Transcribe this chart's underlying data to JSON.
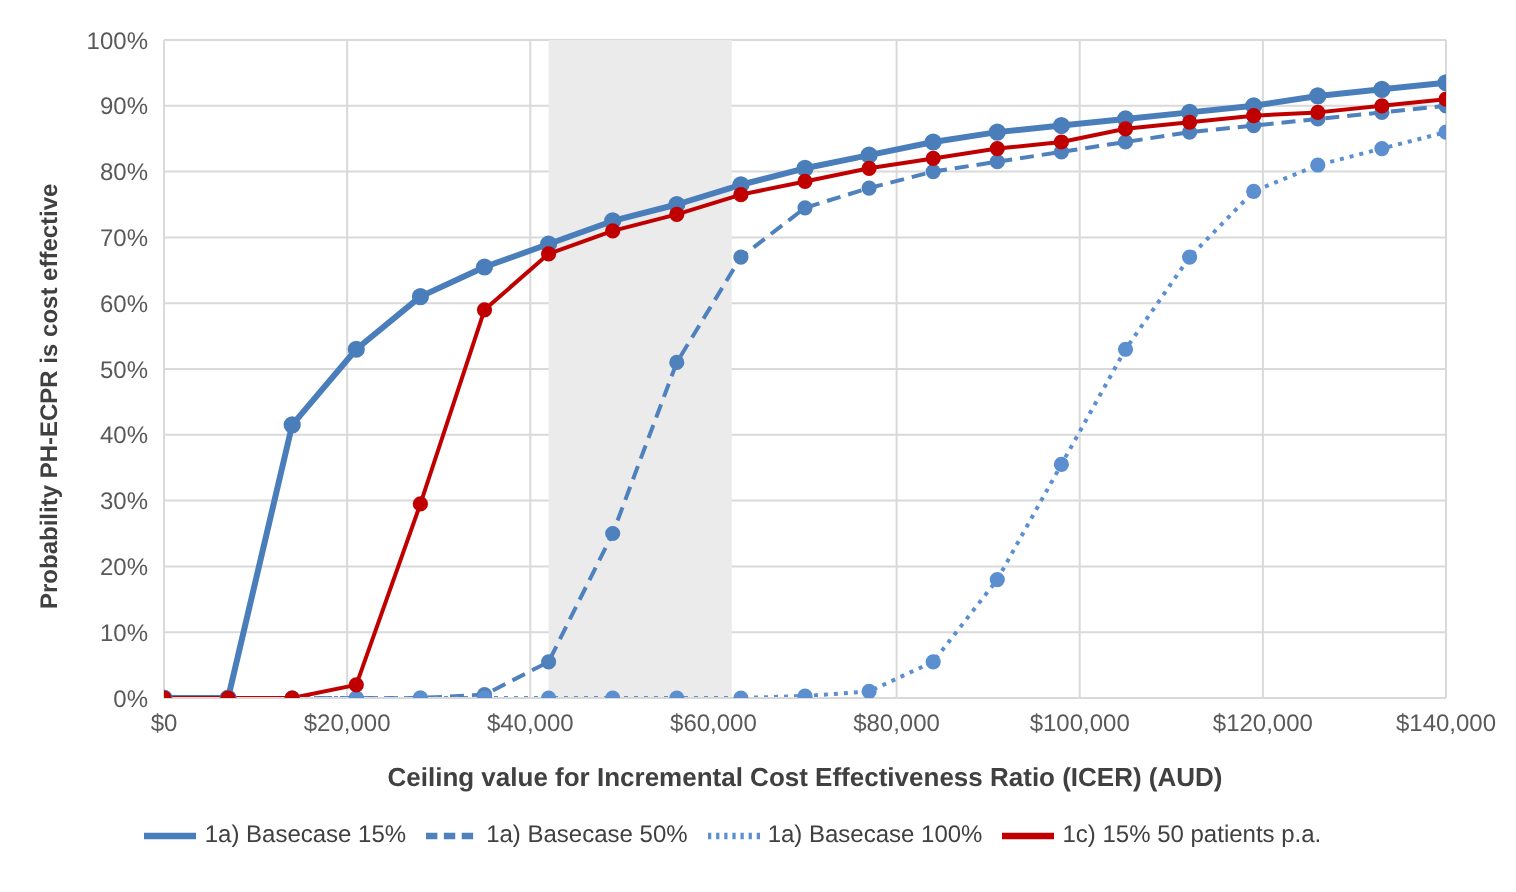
{
  "chart_data": {
    "type": "line",
    "xlabel": "Ceiling value for Incremental Cost Effectiveness Ratio (ICER) (AUD)",
    "ylabel": "Probability PH-ECPR is cost effective",
    "x": [
      0,
      7000,
      14000,
      21000,
      28000,
      35000,
      42000,
      49000,
      56000,
      63000,
      70000,
      77000,
      84000,
      91000,
      98000,
      105000,
      112000,
      119000,
      126000,
      133000,
      140000
    ],
    "series": [
      {
        "name": "1a) Basecase 15%",
        "color": "#4a7ebb",
        "line_style": "solid",
        "values": [
          0,
          0,
          41.5,
          53,
          61,
          65.5,
          69,
          72.5,
          75,
          78,
          80.5,
          82.5,
          84.5,
          86,
          87,
          88,
          89,
          90,
          91.5,
          92.5,
          93.5
        ]
      },
      {
        "name": "1a) Basecase 50%",
        "color": "#4f81bd",
        "line_style": "dashed",
        "values": [
          0,
          0,
          0,
          0,
          0,
          0.5,
          5.5,
          25,
          51,
          67,
          74.5,
          77.5,
          80,
          81.5,
          83,
          84.5,
          86,
          87,
          88,
          89,
          90
        ]
      },
      {
        "name": "1a) Basecase 100%",
        "color": "#5b8fd0",
        "line_style": "dotted",
        "values": [
          0,
          0,
          0,
          0,
          0,
          0,
          0,
          0,
          0,
          0,
          0.3,
          1,
          5.5,
          18,
          35.5,
          53,
          67,
          77,
          81,
          83.5,
          86
        ]
      },
      {
        "name": "1c) 15% 50 patients p.a.",
        "color": "#c00000",
        "line_style": "solid",
        "values": [
          0,
          0,
          0,
          2,
          29.5,
          59,
          67.5,
          71,
          73.5,
          76.5,
          78.5,
          80.5,
          82,
          83.5,
          84.5,
          86.5,
          87.5,
          88.5,
          89,
          90,
          91
        ]
      }
    ],
    "xlim": [
      0,
      140000
    ],
    "xticks": [
      {
        "value": 0,
        "label": "$0"
      },
      {
        "value": 20000,
        "label": "$20,000"
      },
      {
        "value": 40000,
        "label": "$40,000"
      },
      {
        "value": 60000,
        "label": "$60,000"
      },
      {
        "value": 80000,
        "label": "$80,000"
      },
      {
        "value": 100000,
        "label": "$100,000"
      },
      {
        "value": 120000,
        "label": "$120,000"
      },
      {
        "value": 140000,
        "label": "$140,000"
      }
    ],
    "ylim": [
      0,
      100
    ],
    "yticks": [
      {
        "value": 0,
        "label": "0%"
      },
      {
        "value": 10,
        "label": "10%"
      },
      {
        "value": 20,
        "label": "20%"
      },
      {
        "value": 30,
        "label": "30%"
      },
      {
        "value": 40,
        "label": "40%"
      },
      {
        "value": 50,
        "label": "50%"
      },
      {
        "value": 60,
        "label": "60%"
      },
      {
        "value": 70,
        "label": "70%"
      },
      {
        "value": 80,
        "label": "80%"
      },
      {
        "value": 90,
        "label": "90%"
      },
      {
        "value": 100,
        "label": "100%"
      }
    ],
    "bands": [
      {
        "axis": "x",
        "from": 42000,
        "to": 62000,
        "color": "#ebebeb"
      }
    ],
    "grid": true,
    "legend": "bottom",
    "marker": "circle"
  }
}
